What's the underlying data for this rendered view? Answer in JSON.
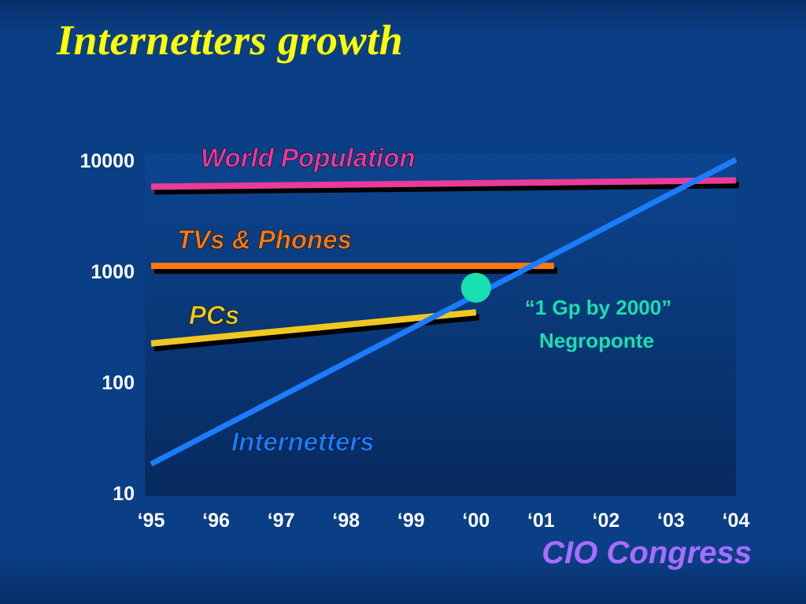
{
  "slide": {
    "title": "Internetters growth",
    "footer": "CIO Congress"
  },
  "colors": {
    "background": "#0a3f86",
    "plot_area": "#0b3a7c",
    "title": "#ffff00",
    "world_population": "#ea3a9a",
    "tvs_phones": "#ff7a10",
    "pcs": "#f0c820",
    "internetters": "#1a7cff",
    "milestone": "#18e0b0",
    "footer": "#a86cff"
  },
  "chart_data": {
    "type": "line",
    "title": "",
    "xlabel": "",
    "ylabel": "",
    "y_scale": "log",
    "ylim": [
      10,
      10000
    ],
    "y_ticks": [
      {
        "value": 10000,
        "label": "10000"
      },
      {
        "value": 1000,
        "label": "1000"
      },
      {
        "value": 100,
        "label": "100"
      },
      {
        "value": 10,
        "label": "10"
      }
    ],
    "x_ticks": [
      "‘95",
      "‘96",
      "‘97",
      "‘98",
      "‘99",
      "‘00",
      "‘01",
      "‘02",
      "‘03",
      "‘04"
    ],
    "series": [
      {
        "name": "World Population",
        "color": "#ea3a9a",
        "x": [
          1995,
          2004
        ],
        "y": [
          5700,
          6500
        ]
      },
      {
        "name": "TVs & Phones",
        "color": "#ff7a10",
        "x": [
          1995,
          2001.2
        ],
        "y": [
          1100,
          1100
        ]
      },
      {
        "name": "PCs",
        "color": "#f0c820",
        "x": [
          1995,
          2000
        ],
        "y": [
          220,
          420
        ]
      },
      {
        "name": "Internetters",
        "color": "#1a7cff",
        "x": [
          1995,
          2004
        ],
        "y": [
          18,
          10000
        ]
      }
    ],
    "annotations": [
      {
        "text_line1": "“1 Gp by 2000”",
        "text_line2": "Negroponte",
        "x": 2000,
        "y": 700
      }
    ],
    "grid": false,
    "legend": "inline labels"
  }
}
